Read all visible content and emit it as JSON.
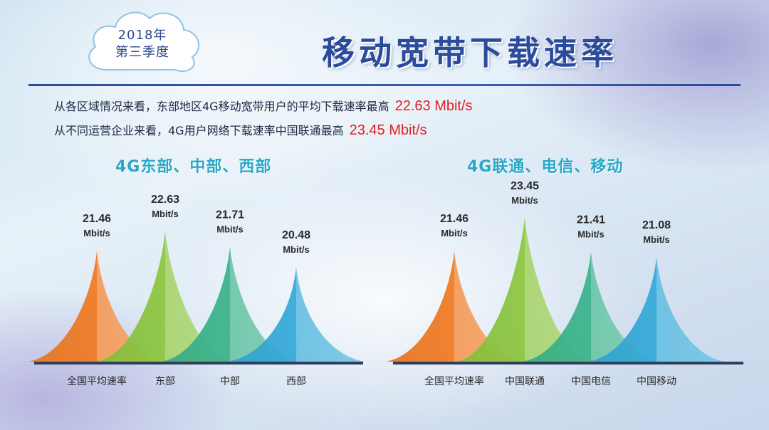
{
  "badge": {
    "year": "2018年",
    "quarter": "第三季度"
  },
  "title": "移动宽带下载速率",
  "summary": {
    "line1_text": "从各区域情况来看，东部地区4G移动宽带用户的平均下载速率最高",
    "line1_value": "22.63 Mbit/s",
    "line2_text": "从不同运营企业来看，4G用户网络下载速率中国联通最高",
    "line2_value": "23.45 Mbit/s"
  },
  "colors": {
    "title": "#2b4b9b",
    "chart_title": "#2aa7c8",
    "highlight": "#e02020",
    "series": [
      "#f07a22",
      "#8cc63f",
      "#3bb38b",
      "#35a9d8"
    ]
  },
  "chart_data": [
    {
      "type": "area",
      "title": "4G东部、中部、西部",
      "categories": [
        "全国平均速率",
        "东部",
        "中部",
        "西部"
      ],
      "values": [
        21.46,
        22.63,
        21.71,
        20.48
      ],
      "value_labels": [
        "21.46",
        "22.63",
        "21.71",
        "20.48"
      ],
      "unit": "Mbit/s",
      "ylim": [
        0,
        23.45
      ]
    },
    {
      "type": "area",
      "title": "4G联通、电信、移动",
      "categories": [
        "全国平均速率",
        "中国联通",
        "中国电信",
        "中国移动"
      ],
      "values": [
        21.46,
        23.45,
        21.41,
        21.08
      ],
      "value_labels": [
        "21.46",
        "23.45",
        "21.41",
        "21.08"
      ],
      "unit": "Mbit/s",
      "ylim": [
        0,
        23.45
      ]
    }
  ]
}
